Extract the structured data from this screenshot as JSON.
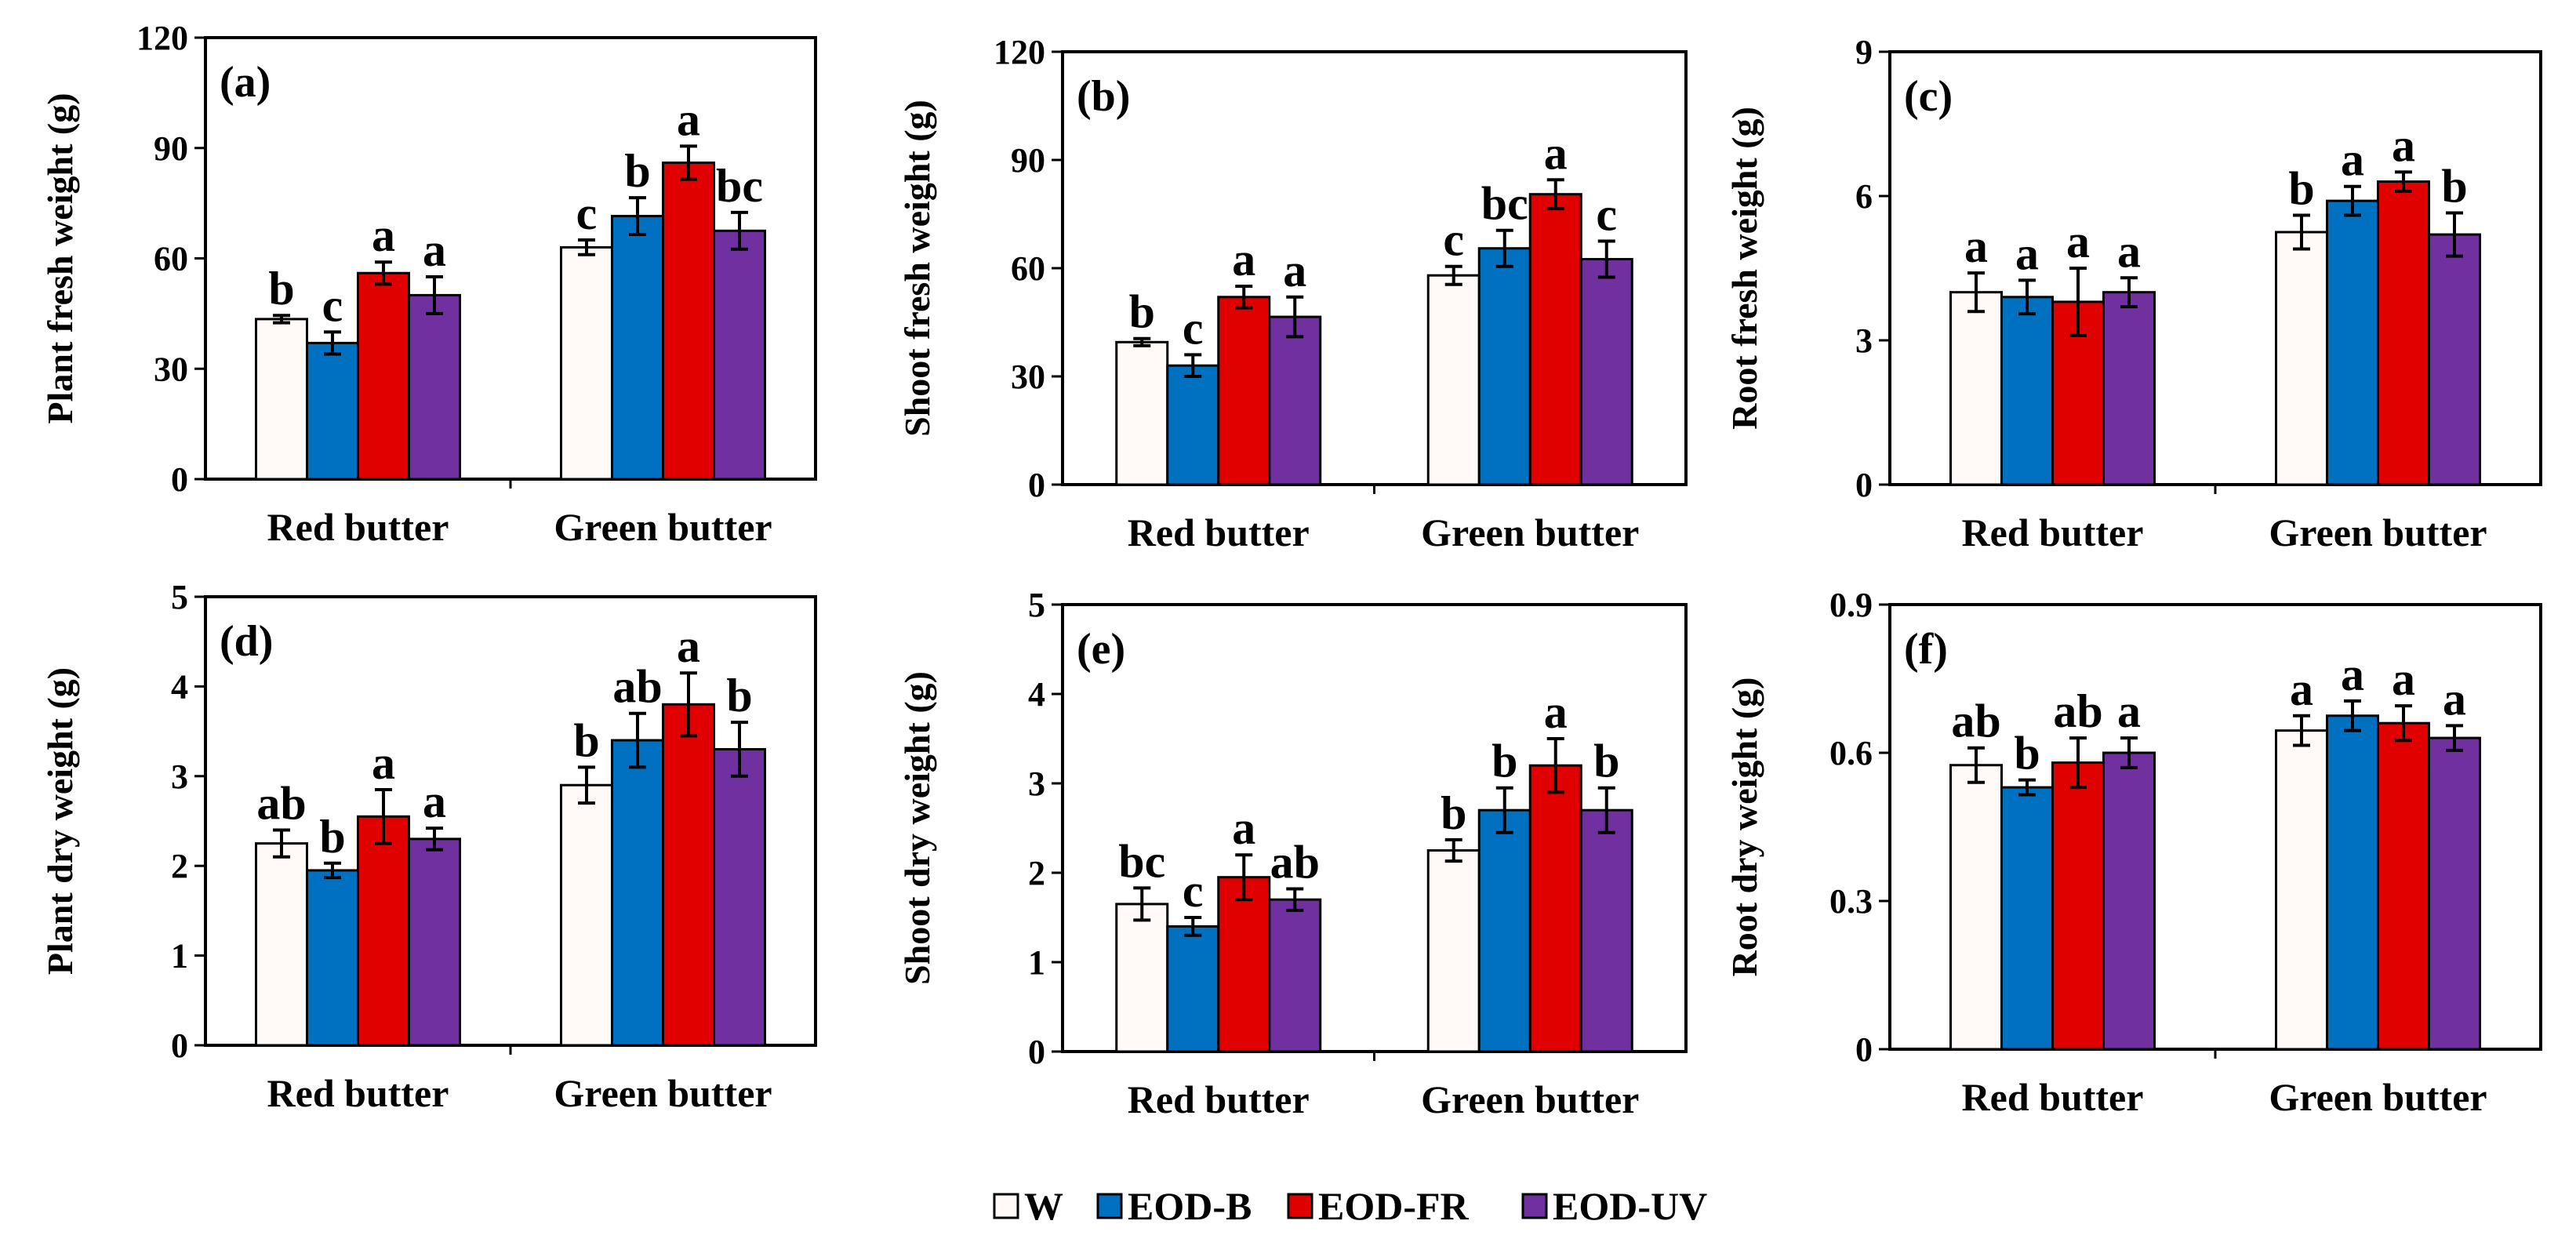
{
  "legend": [
    "W",
    "EOD-B",
    "EOD-FR",
    "EOD-UV"
  ],
  "colors": {
    "W": "#FFF9F8",
    "EOD-B": "#0070C0",
    "EOD-FR": "#E00000",
    "EOD-UV": "#7030A0"
  },
  "chart_data": [
    {
      "type": "bar",
      "title": "(a)",
      "ylabel": "Plant fresh weight (g)",
      "categories": [
        "Red butter",
        "Green butter"
      ],
      "ylim": [
        0,
        120
      ],
      "yticks": [
        0,
        30,
        60,
        90,
        120
      ],
      "series": [
        {
          "name": "W",
          "values": [
            43.5,
            63
          ],
          "errors": [
            1,
            2
          ],
          "letters": [
            "b",
            "c"
          ]
        },
        {
          "name": "EOD-B",
          "values": [
            37,
            71.5
          ],
          "errors": [
            3,
            5
          ],
          "letters": [
            "c",
            "b"
          ]
        },
        {
          "name": "EOD-FR",
          "values": [
            56,
            86
          ],
          "errors": [
            3,
            4.5
          ],
          "letters": [
            "a",
            "a"
          ]
        },
        {
          "name": "EOD-UV",
          "values": [
            50,
            67.5
          ],
          "errors": [
            5,
            5
          ],
          "letters": [
            "a",
            "bc"
          ]
        }
      ]
    },
    {
      "type": "bar",
      "title": "(b)",
      "ylabel": "Shoot fresh weight (g)",
      "categories": [
        "Red butter",
        "Green butter"
      ],
      "ylim": [
        0,
        120
      ],
      "yticks": [
        0,
        30,
        60,
        90,
        120
      ],
      "series": [
        {
          "name": "W",
          "values": [
            39.5,
            58
          ],
          "errors": [
            1,
            2.5
          ],
          "letters": [
            "b",
            "c"
          ]
        },
        {
          "name": "EOD-B",
          "values": [
            33,
            65.5
          ],
          "errors": [
            3,
            5
          ],
          "letters": [
            "c",
            "bc"
          ]
        },
        {
          "name": "EOD-FR",
          "values": [
            52,
            80.5
          ],
          "errors": [
            3,
            4
          ],
          "letters": [
            "a",
            "a"
          ]
        },
        {
          "name": "EOD-UV",
          "values": [
            46.5,
            62.5
          ],
          "errors": [
            5.5,
            5
          ],
          "letters": [
            "a",
            "c"
          ]
        }
      ]
    },
    {
      "type": "bar",
      "title": "(c)",
      "ylabel": "Root fresh weight (g)",
      "categories": [
        "Red butter",
        "Green butter"
      ],
      "ylim": [
        0,
        9
      ],
      "yticks": [
        0,
        3,
        6,
        9
      ],
      "series": [
        {
          "name": "W",
          "values": [
            4,
            5.25
          ],
          "errors": [
            0.4,
            0.35
          ],
          "letters": [
            "a",
            "b"
          ]
        },
        {
          "name": "EOD-B",
          "values": [
            3.9,
            5.9
          ],
          "errors": [
            0.35,
            0.3
          ],
          "letters": [
            "a",
            "a"
          ]
        },
        {
          "name": "EOD-FR",
          "values": [
            3.8,
            6.3
          ],
          "errors": [
            0.7,
            0.2
          ],
          "letters": [
            "a",
            "a"
          ]
        },
        {
          "name": "EOD-UV",
          "values": [
            4,
            5.2
          ],
          "errors": [
            0.3,
            0.45
          ],
          "letters": [
            "a",
            "b"
          ]
        }
      ]
    },
    {
      "type": "bar",
      "title": "(d)",
      "ylabel": "Plant dry weight (g)",
      "categories": [
        "Red butter",
        "Green butter"
      ],
      "ylim": [
        0,
        5
      ],
      "yticks": [
        0,
        1,
        2,
        3,
        4,
        5
      ],
      "series": [
        {
          "name": "W",
          "values": [
            2.25,
            2.9
          ],
          "errors": [
            0.15,
            0.2
          ],
          "letters": [
            "ab",
            "b"
          ]
        },
        {
          "name": "EOD-B",
          "values": [
            1.95,
            3.4
          ],
          "errors": [
            0.08,
            0.3
          ],
          "letters": [
            "b",
            "ab"
          ]
        },
        {
          "name": "EOD-FR",
          "values": [
            2.55,
            3.8
          ],
          "errors": [
            0.3,
            0.35
          ],
          "letters": [
            "a",
            "a"
          ]
        },
        {
          "name": "EOD-UV",
          "values": [
            2.3,
            3.3
          ],
          "errors": [
            0.12,
            0.3
          ],
          "letters": [
            "a",
            "b"
          ]
        }
      ]
    },
    {
      "type": "bar",
      "title": "(e)",
      "ylabel": "Shoot dry weight (g)",
      "categories": [
        "Red butter",
        "Green butter"
      ],
      "ylim": [
        0,
        5
      ],
      "yticks": [
        0,
        1,
        2,
        3,
        4,
        5
      ],
      "series": [
        {
          "name": "W",
          "values": [
            1.65,
            2.25
          ],
          "errors": [
            0.18,
            0.12
          ],
          "letters": [
            "bc",
            "b"
          ]
        },
        {
          "name": "EOD-B",
          "values": [
            1.4,
            2.7
          ],
          "errors": [
            0.1,
            0.25
          ],
          "letters": [
            "c",
            "b"
          ]
        },
        {
          "name": "EOD-FR",
          "values": [
            1.95,
            3.2
          ],
          "errors": [
            0.25,
            0.3
          ],
          "letters": [
            "a",
            "a"
          ]
        },
        {
          "name": "EOD-UV",
          "values": [
            1.7,
            2.7
          ],
          "errors": [
            0.12,
            0.25
          ],
          "letters": [
            "ab",
            "b"
          ]
        }
      ]
    },
    {
      "type": "bar",
      "title": "(f)",
      "ylabel": "Root dry weight (g)",
      "categories": [
        "Red butter",
        "Green butter"
      ],
      "ylim": [
        0,
        0.9
      ],
      "yticks": [
        0,
        0.3,
        0.6,
        0.9
      ],
      "series": [
        {
          "name": "W",
          "values": [
            0.575,
            0.645
          ],
          "errors": [
            0.035,
            0.03
          ],
          "letters": [
            "ab",
            "a"
          ]
        },
        {
          "name": "EOD-B",
          "values": [
            0.53,
            0.675
          ],
          "errors": [
            0.015,
            0.03
          ],
          "letters": [
            "b",
            "a"
          ]
        },
        {
          "name": "EOD-FR",
          "values": [
            0.58,
            0.66
          ],
          "errors": [
            0.05,
            0.035
          ],
          "letters": [
            "ab",
            "a"
          ]
        },
        {
          "name": "EOD-UV",
          "values": [
            0.6,
            0.63
          ],
          "errors": [
            0.03,
            0.025
          ],
          "letters": [
            "a",
            "a"
          ]
        }
      ]
    }
  ]
}
